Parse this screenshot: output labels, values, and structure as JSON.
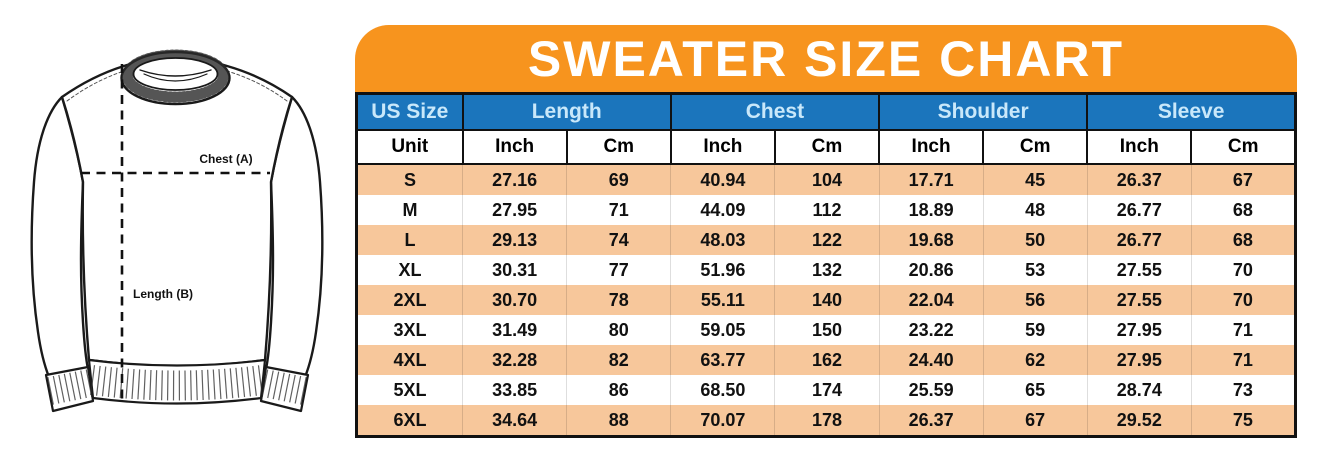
{
  "title": "SWEATER SIZE CHART",
  "diagram": {
    "chest_label": "Chest (A)",
    "length_label": "Length (B)"
  },
  "table": {
    "group_headers": [
      "US Size",
      "Length",
      "Chest",
      "Shoulder",
      "Sleeve"
    ],
    "unit_row": [
      "Unit",
      "Inch",
      "Cm",
      "Inch",
      "Cm",
      "Inch",
      "Cm",
      "Inch",
      "Cm"
    ],
    "rows": [
      [
        "S",
        "27.16",
        "69",
        "40.94",
        "104",
        "17.71",
        "45",
        "26.37",
        "67"
      ],
      [
        "M",
        "27.95",
        "71",
        "44.09",
        "112",
        "18.89",
        "48",
        "26.77",
        "68"
      ],
      [
        "L",
        "29.13",
        "74",
        "48.03",
        "122",
        "19.68",
        "50",
        "26.77",
        "68"
      ],
      [
        "XL",
        "30.31",
        "77",
        "51.96",
        "132",
        "20.86",
        "53",
        "27.55",
        "70"
      ],
      [
        "2XL",
        "30.70",
        "78",
        "55.11",
        "140",
        "22.04",
        "56",
        "27.55",
        "70"
      ],
      [
        "3XL",
        "31.49",
        "80",
        "59.05",
        "150",
        "23.22",
        "59",
        "27.95",
        "71"
      ],
      [
        "4XL",
        "32.28",
        "82",
        "63.77",
        "162",
        "24.40",
        "62",
        "27.95",
        "71"
      ],
      [
        "5XL",
        "33.85",
        "86",
        "68.50",
        "174",
        "25.59",
        "65",
        "28.74",
        "73"
      ],
      [
        "6XL",
        "34.64",
        "88",
        "70.07",
        "178",
        "26.37",
        "67",
        "29.52",
        "75"
      ]
    ]
  },
  "chart_data": {
    "type": "table",
    "title": "SWEATER SIZE CHART",
    "columns": [
      "US Size",
      "Length (Inch)",
      "Length (Cm)",
      "Chest (Inch)",
      "Chest (Cm)",
      "Shoulder (Inch)",
      "Shoulder (Cm)",
      "Sleeve (Inch)",
      "Sleeve (Cm)"
    ],
    "rows": [
      [
        "S",
        27.16,
        69,
        40.94,
        104,
        17.71,
        45,
        26.37,
        67
      ],
      [
        "M",
        27.95,
        71,
        44.09,
        112,
        18.89,
        48,
        26.77,
        68
      ],
      [
        "L",
        29.13,
        74,
        48.03,
        122,
        19.68,
        50,
        26.77,
        68
      ],
      [
        "XL",
        30.31,
        77,
        51.96,
        132,
        20.86,
        53,
        27.55,
        70
      ],
      [
        "2XL",
        30.7,
        78,
        55.11,
        140,
        22.04,
        56,
        27.55,
        70
      ],
      [
        "3XL",
        31.49,
        80,
        59.05,
        150,
        23.22,
        59,
        27.95,
        71
      ],
      [
        "4XL",
        32.28,
        82,
        63.77,
        162,
        24.4,
        62,
        27.95,
        71
      ],
      [
        "5XL",
        33.85,
        86,
        68.5,
        174,
        25.59,
        65,
        28.74,
        73
      ],
      [
        "6XL",
        34.64,
        88,
        70.07,
        178,
        26.37,
        67,
        29.52,
        75
      ]
    ],
    "row_striping": [
      "peach",
      "white"
    ],
    "legend_position": "none",
    "grid": false
  },
  "colors": {
    "banner_orange": "#F7941E",
    "header_blue": "#1B75BC",
    "header_text_blue": "#C9E8FA",
    "row_peach": "#F7C79B",
    "row_white": "#FFFFFF",
    "border_black": "#111111",
    "line_art": "#1A1A1A"
  }
}
